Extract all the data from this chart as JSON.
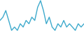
{
  "values": [
    5,
    6,
    8,
    5,
    2,
    3,
    2,
    4,
    3,
    5,
    4,
    6,
    5,
    9,
    11,
    8,
    4,
    6,
    3,
    2,
    4,
    3,
    5,
    3,
    4,
    3,
    2,
    4,
    3,
    4
  ],
  "line_color": "#3eaacc",
  "background_color": "#ffffff",
  "linewidth": 1.0
}
